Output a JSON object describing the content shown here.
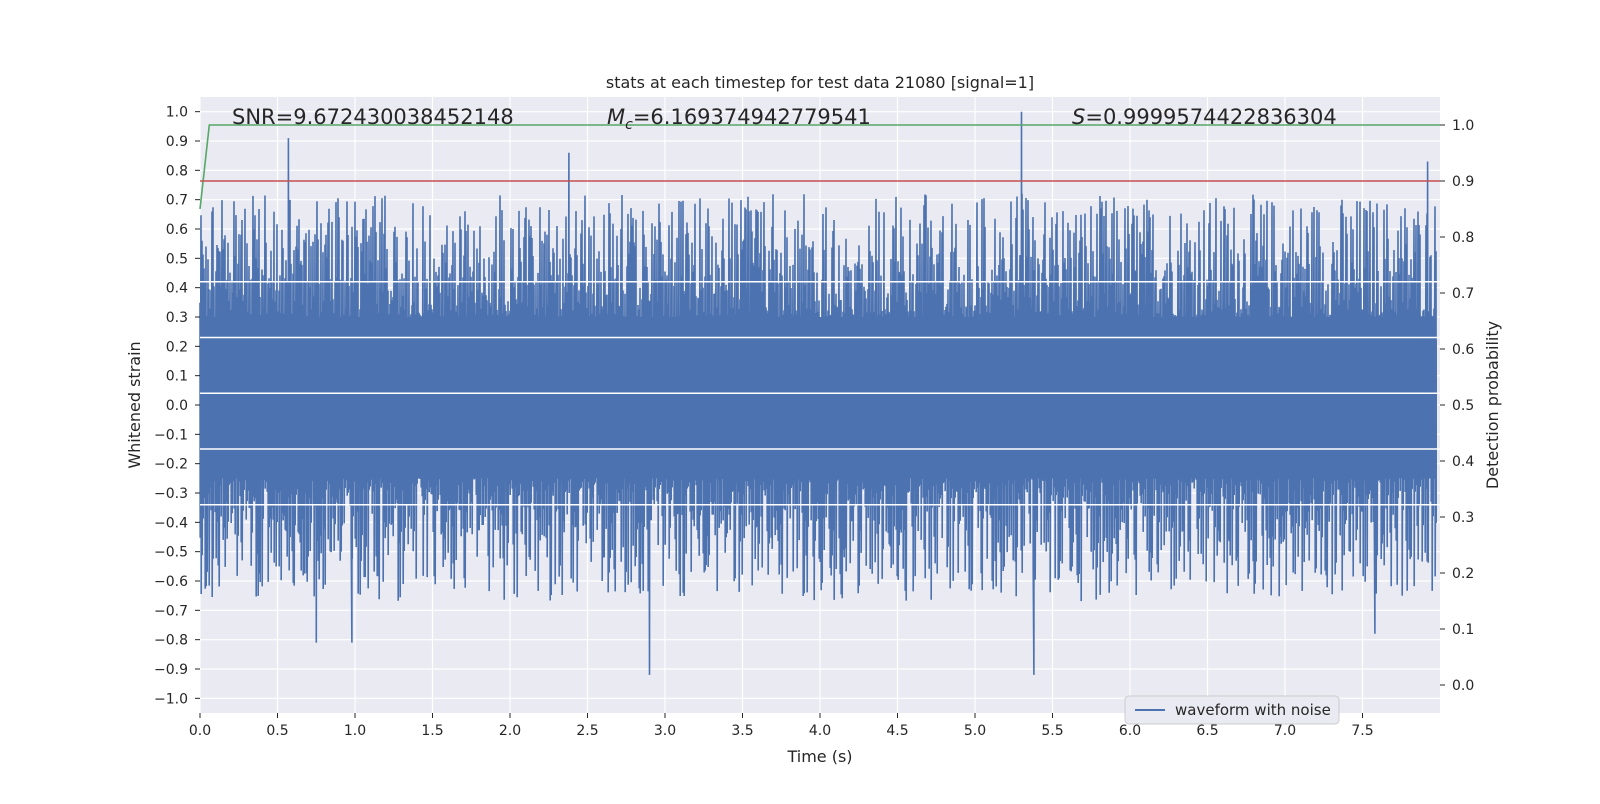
{
  "chart_data": {
    "type": "line",
    "title": "stats at each timestep for test data 21080 [signal=1]",
    "xlabel": "Time (s)",
    "ylabel": "Whitened strain",
    "y2label": "Detection probability",
    "xlim": [
      0.0,
      8.0
    ],
    "ylim": [
      -1.05,
      1.05
    ],
    "y2lim": [
      -0.05,
      1.05
    ],
    "xticks": [
      "0.0",
      "0.5",
      "1.0",
      "1.5",
      "2.0",
      "2.5",
      "3.0",
      "3.5",
      "4.0",
      "4.5",
      "5.0",
      "5.5",
      "6.0",
      "6.5",
      "7.0",
      "7.5"
    ],
    "yticks": [
      "1.0",
      "0.9",
      "0.8",
      "0.7",
      "0.6",
      "0.5",
      "0.4",
      "0.3",
      "0.2",
      "0.1",
      "0.0",
      "−0.1",
      "−0.2",
      "−0.3",
      "−0.4",
      "−0.5",
      "−0.6",
      "−0.7",
      "−0.8",
      "−0.9",
      "−1.0"
    ],
    "y2ticks": [
      "1.0",
      "0.9",
      "0.8",
      "0.7",
      "0.6",
      "0.5",
      "0.4",
      "0.3",
      "0.2",
      "0.1",
      "0.0"
    ],
    "grid": true,
    "legend_position": "lower-right",
    "annotations": {
      "snr": "SNR=9.672430038452148",
      "mc_symbol": "M",
      "mc_subscript": "c",
      "mc_value": "=6.169374942779541",
      "s_symbol": "S",
      "s_value": "=0.9999574422836304"
    },
    "series": [
      {
        "name": "waveform with noise",
        "axis": "left",
        "color": "#4c72b0",
        "note_values": "dense noise envelope; peaks listed below",
        "positive_peaks": [
          [
            0.57,
            0.91
          ],
          [
            2.38,
            0.86
          ],
          [
            5.3,
            1.0
          ],
          [
            7.92,
            0.83
          ]
        ],
        "negative_peaks": [
          [
            0.75,
            -0.81
          ],
          [
            0.98,
            -0.81
          ],
          [
            2.9,
            -0.92
          ],
          [
            5.38,
            -0.92
          ],
          [
            7.58,
            -0.78
          ]
        ]
      },
      {
        "axis": "right",
        "color": "#55a868",
        "x": [
          0.0,
          0.06,
          8.0
        ],
        "y": [
          0.85,
          1.0,
          1.0
        ]
      },
      {
        "axis": "right",
        "color": "#c44e52",
        "x": [
          0.0,
          8.0
        ],
        "y": [
          0.9,
          0.9
        ]
      }
    ],
    "colors": {
      "background": "#eaeaf2",
      "grid": "#ffffff",
      "text": "#262626"
    }
  }
}
